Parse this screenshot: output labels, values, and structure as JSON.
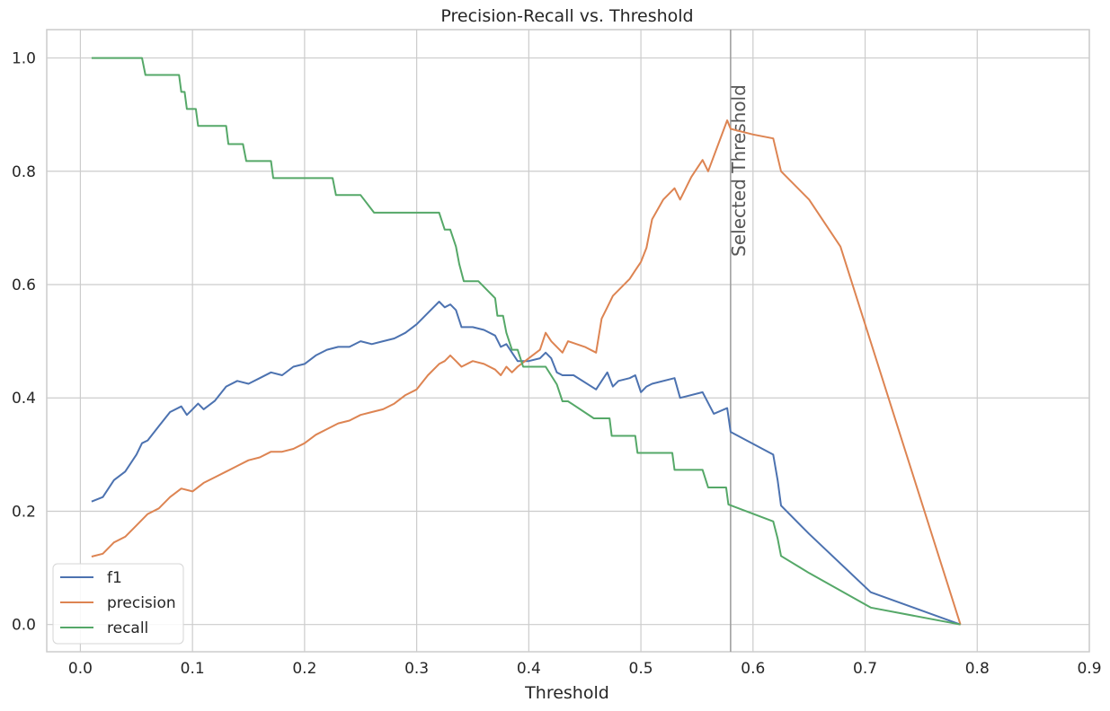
{
  "chart_data": {
    "type": "line",
    "title": "Precision-Recall vs. Threshold",
    "xlabel": "Threshold",
    "ylabel": "",
    "xlim": [
      -0.03,
      0.9
    ],
    "ylim": [
      -0.048,
      1.05
    ],
    "xticks": [
      "0.0",
      "0.1",
      "0.2",
      "0.3",
      "0.4",
      "0.5",
      "0.6",
      "0.7",
      "0.8",
      "0.9"
    ],
    "yticks": [
      "0.0",
      "0.2",
      "0.4",
      "0.6",
      "0.8",
      "1.0"
    ],
    "grid": true,
    "legend_position": "lower-left",
    "threshold_line": {
      "x": 0.58,
      "label": "Selected Threshold",
      "color": "#a0a0a0"
    },
    "series": [
      {
        "name": "f1",
        "color": "#4c72b0",
        "points": [
          [
            0.01,
            0.217
          ],
          [
            0.02,
            0.225
          ],
          [
            0.03,
            0.255
          ],
          [
            0.04,
            0.27
          ],
          [
            0.05,
            0.3
          ],
          [
            0.055,
            0.32
          ],
          [
            0.06,
            0.325
          ],
          [
            0.07,
            0.35
          ],
          [
            0.08,
            0.375
          ],
          [
            0.09,
            0.385
          ],
          [
            0.095,
            0.37
          ],
          [
            0.1,
            0.38
          ],
          [
            0.105,
            0.39
          ],
          [
            0.11,
            0.38
          ],
          [
            0.12,
            0.395
          ],
          [
            0.13,
            0.42
          ],
          [
            0.14,
            0.43
          ],
          [
            0.15,
            0.425
          ],
          [
            0.16,
            0.435
          ],
          [
            0.17,
            0.445
          ],
          [
            0.18,
            0.44
          ],
          [
            0.19,
            0.455
          ],
          [
            0.2,
            0.46
          ],
          [
            0.21,
            0.475
          ],
          [
            0.22,
            0.485
          ],
          [
            0.23,
            0.49
          ],
          [
            0.24,
            0.49
          ],
          [
            0.25,
            0.5
          ],
          [
            0.26,
            0.495
          ],
          [
            0.27,
            0.5
          ],
          [
            0.28,
            0.505
          ],
          [
            0.29,
            0.515
          ],
          [
            0.3,
            0.53
          ],
          [
            0.31,
            0.55
          ],
          [
            0.315,
            0.56
          ],
          [
            0.32,
            0.57
          ],
          [
            0.325,
            0.56
          ],
          [
            0.33,
            0.565
          ],
          [
            0.335,
            0.555
          ],
          [
            0.34,
            0.525
          ],
          [
            0.35,
            0.525
          ],
          [
            0.36,
            0.52
          ],
          [
            0.37,
            0.51
          ],
          [
            0.375,
            0.49
          ],
          [
            0.38,
            0.495
          ],
          [
            0.39,
            0.465
          ],
          [
            0.395,
            0.465
          ],
          [
            0.4,
            0.465
          ],
          [
            0.41,
            0.47
          ],
          [
            0.415,
            0.48
          ],
          [
            0.42,
            0.47
          ],
          [
            0.425,
            0.445
          ],
          [
            0.43,
            0.44
          ],
          [
            0.44,
            0.44
          ],
          [
            0.46,
            0.415
          ],
          [
            0.465,
            0.43
          ],
          [
            0.47,
            0.445
          ],
          [
            0.475,
            0.42
          ],
          [
            0.48,
            0.43
          ],
          [
            0.49,
            0.435
          ],
          [
            0.495,
            0.44
          ],
          [
            0.5,
            0.41
          ],
          [
            0.505,
            0.42
          ],
          [
            0.51,
            0.425
          ],
          [
            0.53,
            0.435
          ],
          [
            0.535,
            0.4
          ],
          [
            0.555,
            0.41
          ],
          [
            0.565,
            0.372
          ],
          [
            0.577,
            0.382
          ],
          [
            0.58,
            0.34
          ],
          [
            0.618,
            0.3
          ],
          [
            0.622,
            0.255
          ],
          [
            0.625,
            0.21
          ],
          [
            0.65,
            0.16
          ],
          [
            0.705,
            0.057
          ],
          [
            0.785,
            0.0
          ]
        ]
      },
      {
        "name": "precision",
        "color": "#dd8452",
        "points": [
          [
            0.01,
            0.12
          ],
          [
            0.02,
            0.125
          ],
          [
            0.03,
            0.145
          ],
          [
            0.04,
            0.155
          ],
          [
            0.05,
            0.175
          ],
          [
            0.06,
            0.195
          ],
          [
            0.07,
            0.205
          ],
          [
            0.08,
            0.225
          ],
          [
            0.09,
            0.24
          ],
          [
            0.1,
            0.235
          ],
          [
            0.11,
            0.25
          ],
          [
            0.12,
            0.26
          ],
          [
            0.13,
            0.27
          ],
          [
            0.14,
            0.28
          ],
          [
            0.15,
            0.29
          ],
          [
            0.16,
            0.295
          ],
          [
            0.17,
            0.305
          ],
          [
            0.18,
            0.305
          ],
          [
            0.19,
            0.31
          ],
          [
            0.2,
            0.32
          ],
          [
            0.21,
            0.335
          ],
          [
            0.22,
            0.345
          ],
          [
            0.23,
            0.355
          ],
          [
            0.24,
            0.36
          ],
          [
            0.25,
            0.37
          ],
          [
            0.26,
            0.375
          ],
          [
            0.27,
            0.38
          ],
          [
            0.28,
            0.39
          ],
          [
            0.29,
            0.405
          ],
          [
            0.3,
            0.415
          ],
          [
            0.31,
            0.44
          ],
          [
            0.32,
            0.46
          ],
          [
            0.325,
            0.465
          ],
          [
            0.33,
            0.475
          ],
          [
            0.335,
            0.465
          ],
          [
            0.34,
            0.455
          ],
          [
            0.35,
            0.465
          ],
          [
            0.36,
            0.46
          ],
          [
            0.37,
            0.45
          ],
          [
            0.375,
            0.44
          ],
          [
            0.38,
            0.455
          ],
          [
            0.385,
            0.445
          ],
          [
            0.39,
            0.455
          ],
          [
            0.4,
            0.47
          ],
          [
            0.41,
            0.485
          ],
          [
            0.415,
            0.515
          ],
          [
            0.42,
            0.5
          ],
          [
            0.43,
            0.48
          ],
          [
            0.435,
            0.5
          ],
          [
            0.45,
            0.49
          ],
          [
            0.46,
            0.48
          ],
          [
            0.465,
            0.54
          ],
          [
            0.47,
            0.56
          ],
          [
            0.475,
            0.58
          ],
          [
            0.48,
            0.59
          ],
          [
            0.49,
            0.61
          ],
          [
            0.495,
            0.625
          ],
          [
            0.5,
            0.64
          ],
          [
            0.505,
            0.665
          ],
          [
            0.51,
            0.715
          ],
          [
            0.52,
            0.75
          ],
          [
            0.53,
            0.77
          ],
          [
            0.535,
            0.75
          ],
          [
            0.545,
            0.79
          ],
          [
            0.555,
            0.82
          ],
          [
            0.56,
            0.8
          ],
          [
            0.577,
            0.89
          ],
          [
            0.58,
            0.875
          ],
          [
            0.6,
            0.865
          ],
          [
            0.618,
            0.858
          ],
          [
            0.625,
            0.8
          ],
          [
            0.65,
            0.75
          ],
          [
            0.678,
            0.667
          ],
          [
            0.785,
            0.0
          ]
        ]
      },
      {
        "name": "recall",
        "color": "#55a868",
        "points": [
          [
            0.01,
            1.0
          ],
          [
            0.055,
            1.0
          ],
          [
            0.058,
            0.97
          ],
          [
            0.088,
            0.97
          ],
          [
            0.09,
            0.94
          ],
          [
            0.093,
            0.94
          ],
          [
            0.095,
            0.91
          ],
          [
            0.103,
            0.91
          ],
          [
            0.105,
            0.88
          ],
          [
            0.13,
            0.88
          ],
          [
            0.132,
            0.848
          ],
          [
            0.145,
            0.848
          ],
          [
            0.148,
            0.818
          ],
          [
            0.17,
            0.818
          ],
          [
            0.172,
            0.788
          ],
          [
            0.225,
            0.788
          ],
          [
            0.228,
            0.758
          ],
          [
            0.25,
            0.758
          ],
          [
            0.262,
            0.727
          ],
          [
            0.32,
            0.727
          ],
          [
            0.325,
            0.697
          ],
          [
            0.33,
            0.697
          ],
          [
            0.335,
            0.667
          ],
          [
            0.338,
            0.636
          ],
          [
            0.342,
            0.606
          ],
          [
            0.355,
            0.606
          ],
          [
            0.37,
            0.576
          ],
          [
            0.372,
            0.545
          ],
          [
            0.377,
            0.545
          ],
          [
            0.38,
            0.515
          ],
          [
            0.385,
            0.485
          ],
          [
            0.39,
            0.485
          ],
          [
            0.395,
            0.455
          ],
          [
            0.415,
            0.455
          ],
          [
            0.425,
            0.424
          ],
          [
            0.43,
            0.394
          ],
          [
            0.435,
            0.394
          ],
          [
            0.458,
            0.364
          ],
          [
            0.472,
            0.364
          ],
          [
            0.474,
            0.333
          ],
          [
            0.495,
            0.333
          ],
          [
            0.497,
            0.303
          ],
          [
            0.528,
            0.303
          ],
          [
            0.53,
            0.273
          ],
          [
            0.555,
            0.273
          ],
          [
            0.56,
            0.242
          ],
          [
            0.576,
            0.242
          ],
          [
            0.578,
            0.212
          ],
          [
            0.618,
            0.182
          ],
          [
            0.622,
            0.152
          ],
          [
            0.625,
            0.121
          ],
          [
            0.65,
            0.091
          ],
          [
            0.705,
            0.03
          ],
          [
            0.785,
            0.0
          ]
        ]
      }
    ]
  }
}
